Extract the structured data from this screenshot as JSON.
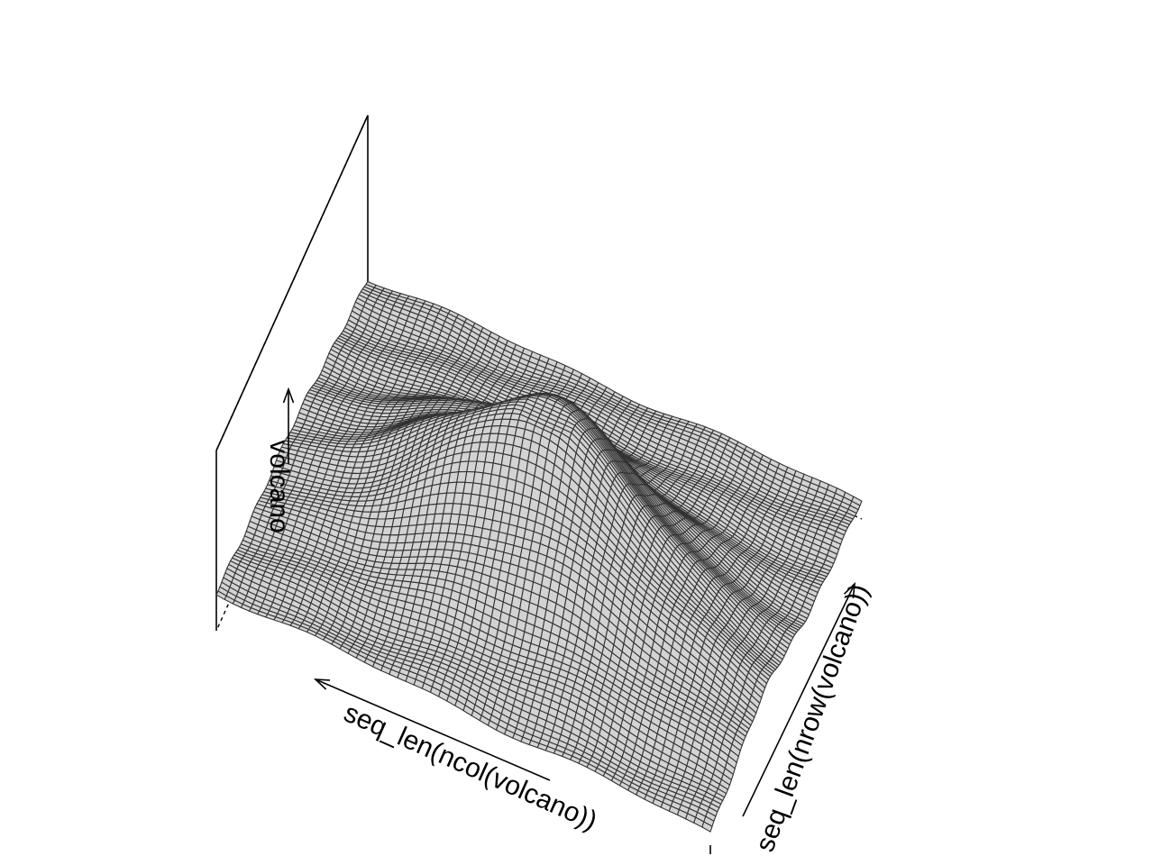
{
  "chart_data": {
    "type": "surface",
    "plot_kind": "persp",
    "xlabel": "seq_len(nrow(volcano))",
    "ylabel": "seq_len(ncol(volcano))",
    "zlabel": "volcano",
    "x_range": [
      1,
      87
    ],
    "y_range": [
      1,
      61
    ],
    "z_range": [
      94,
      195
    ],
    "box": true,
    "ticktype": "simple",
    "surface_color": "#d3d3d3",
    "mesh_color": "#333333",
    "dataset": "volcano"
  }
}
